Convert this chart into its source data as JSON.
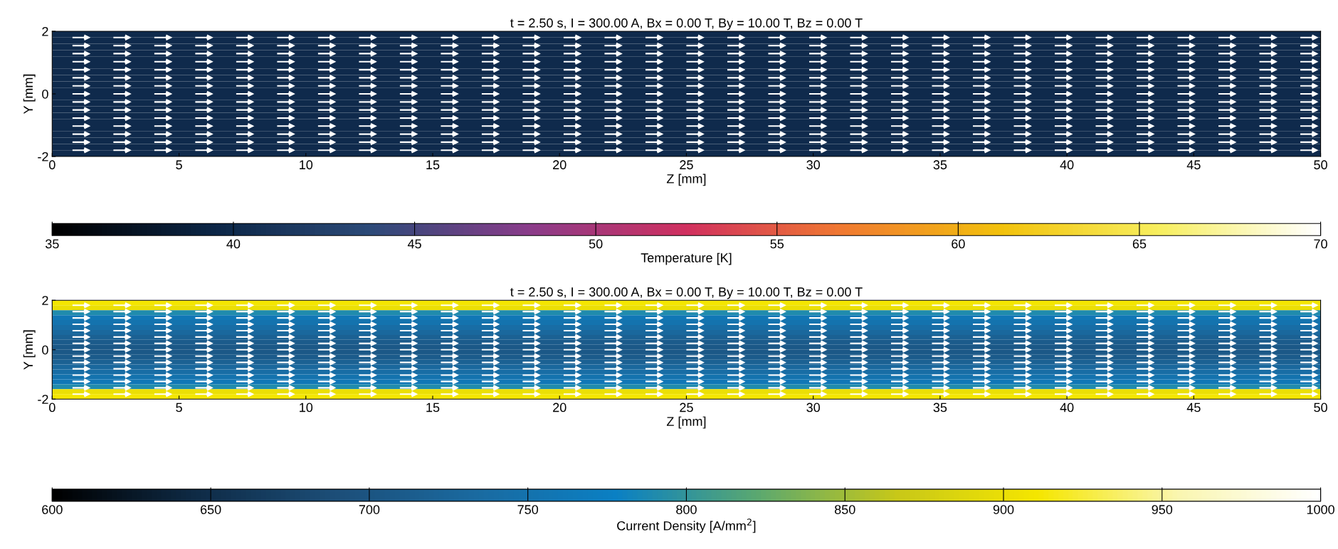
{
  "chart_data": [
    {
      "type": "heatmap",
      "title": "t = 2.50 s, I = 300.00 A, Bx = 0.00 T, By = 10.00 T, Bz = 0.00 T",
      "xlabel": "Z [mm]",
      "ylabel": "Y [mm]",
      "clabel": "Temperature [K]",
      "y": [
        1.9,
        1.7,
        1.5,
        1.3,
        1.1,
        0.9,
        0.7,
        0.5,
        0.3,
        0.1,
        -0.1,
        -0.3,
        -0.5,
        -0.7,
        -0.9,
        -1.1,
        -1.3,
        -1.5,
        -1.7,
        -1.9
      ],
      "cells": [
        [
          40
        ],
        [
          40
        ],
        [
          40
        ],
        [
          40
        ],
        [
          40
        ],
        [
          40
        ],
        [
          40
        ],
        [
          40
        ],
        [
          40
        ],
        [
          40
        ],
        [
          40
        ],
        [
          40
        ],
        [
          40
        ],
        [
          40
        ],
        [
          40
        ],
        [
          40
        ],
        [
          40
        ],
        [
          40
        ],
        [
          40
        ],
        [
          40
        ]
      ],
      "colors": [
        "#000000",
        "#0b2545",
        "#2c4a78",
        "#8a3c8a",
        "#d0305f",
        "#f07a30",
        "#f2c20c",
        "#f7ef60",
        "#ffffff"
      ],
      "xlim": [
        0,
        50
      ],
      "xticks": [
        0,
        5,
        10,
        15,
        20,
        25,
        30,
        35,
        40,
        45,
        50
      ],
      "ylim": [
        -2,
        2
      ],
      "yticks": [
        -2,
        0,
        2
      ],
      "clim": [
        35,
        70
      ],
      "cticks": [
        35,
        40,
        45,
        50,
        55,
        60,
        65,
        70
      ]
    },
    {
      "type": "heatmap",
      "title": "t = 2.50 s, I = 300.00 A, Bx = 0.00 T, By = 10.00 T, Bz = 0.00 T",
      "xlabel": "Z [mm]",
      "ylabel": "Y [mm]",
      "clabel": "Current Density [A/mm$^{2}$]",
      "y": [
        1.9,
        1.7,
        1.5,
        1.3,
        1.1,
        0.9,
        0.7,
        0.5,
        0.3,
        0.1,
        -0.1,
        -0.3,
        -0.5,
        -0.7,
        -0.9,
        -1.1,
        -1.3,
        -1.5,
        -1.7,
        -1.9
      ],
      "cells": [
        [
          910
        ],
        [
          900
        ],
        [
          790
        ],
        [
          760
        ],
        [
          750
        ],
        [
          740
        ],
        [
          730
        ],
        [
          720
        ],
        [
          710
        ],
        [
          705
        ],
        [
          705
        ],
        [
          710
        ],
        [
          720
        ],
        [
          730
        ],
        [
          740
        ],
        [
          750
        ],
        [
          760
        ],
        [
          790
        ],
        [
          900
        ],
        [
          910
        ]
      ],
      "colors": [
        "#000000",
        "#0e2a45",
        "#1c4e78",
        "#1a6aa0",
        "#0a80c4",
        "#5aa870",
        "#c8c818",
        "#f5e600",
        "#faf6b0",
        "#ffffff"
      ],
      "xlim": [
        0,
        50
      ],
      "xticks": [
        0,
        5,
        10,
        15,
        20,
        25,
        30,
        35,
        40,
        45,
        50
      ],
      "ylim": [
        -2,
        2
      ],
      "yticks": [
        -2,
        0,
        2
      ],
      "clim": [
        600,
        1000
      ],
      "cticks": [
        600,
        650,
        700,
        750,
        800,
        850,
        900,
        950,
        1000
      ]
    }
  ]
}
